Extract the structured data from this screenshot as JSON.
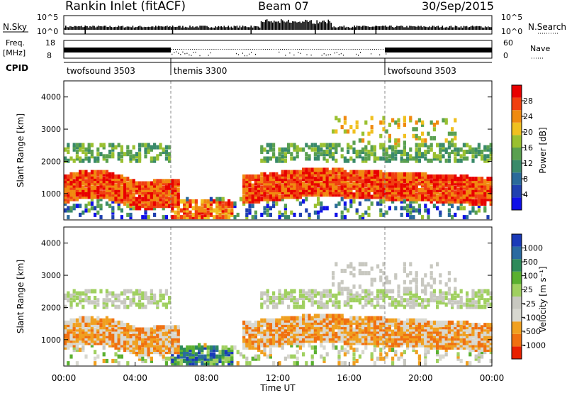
{
  "header": {
    "station": "Rankin Inlet (fitACF)",
    "beam": "Beam 07",
    "date": "30/Sep/2015"
  },
  "status_panels": {
    "nsky_label": "N.Sky",
    "nsearch_label": "N.Search",
    "nsky_ticks": [
      "10^5",
      "10^0"
    ],
    "nsearch_ticks": [
      "10^5",
      "10^0"
    ],
    "freq_label_line1": "Freq.",
    "freq_label_line2": "[MHz]",
    "freq_ticks": [
      "18",
      "8"
    ],
    "nave_label": "Nave",
    "nave_ticks": [
      "60",
      "0"
    ],
    "cpid_label": "CPID",
    "cpid_segments": [
      {
        "name": "twofsound 3503",
        "start_hour": 0,
        "end_hour": 6
      },
      {
        "name": "themis 3300",
        "start_hour": 6,
        "end_hour": 18
      },
      {
        "name": "twofsound 3503",
        "start_hour": 18,
        "end_hour": 24
      }
    ]
  },
  "colors": {
    "power_scale": [
      "#1010e8",
      "#2040b0",
      "#2a6a9a",
      "#3a8a6a",
      "#5aa050",
      "#9ac030",
      "#f0c020",
      "#f08a10",
      "#f04010",
      "#e80000"
    ],
    "velocity_scale": [
      "#1a3ab8",
      "#2a6aa0",
      "#2e8a5a",
      "#5ab030",
      "#a0d060",
      "#c8c8c0",
      "#d8d8d0",
      "#f0a020",
      "#f07010",
      "#e82000"
    ]
  },
  "chart_data": [
    {
      "type": "heatmap",
      "panel": "power",
      "ylabel": "Slant Range [km]",
      "yticks": [
        "1000",
        "2000",
        "3000",
        "4000"
      ],
      "ylim": [
        180,
        4500
      ],
      "xlim": [
        0,
        24
      ],
      "colorbar_label": "Power [dB]",
      "colorbar_ticks": [
        "4",
        "8",
        "12",
        "16",
        "20",
        "24",
        "28"
      ],
      "colorbar_range": [
        0,
        32
      ]
    },
    {
      "type": "heatmap",
      "panel": "velocity",
      "ylabel": "Slant Range [km]",
      "yticks": [
        "1000",
        "2000",
        "3000",
        "4000"
      ],
      "ylim": [
        180,
        4500
      ],
      "xlim": [
        0,
        24
      ],
      "xlabel": "Time UT",
      "xticks": [
        "00:00",
        "04:00",
        "08:00",
        "12:00",
        "16:00",
        "20:00",
        "00:00"
      ],
      "colorbar_label": "Velocity [m s⁻¹]",
      "colorbar_ticks": [
        "1000",
        "500",
        "100",
        "25",
        "-25",
        "-100",
        "-500",
        "-1000"
      ]
    }
  ]
}
